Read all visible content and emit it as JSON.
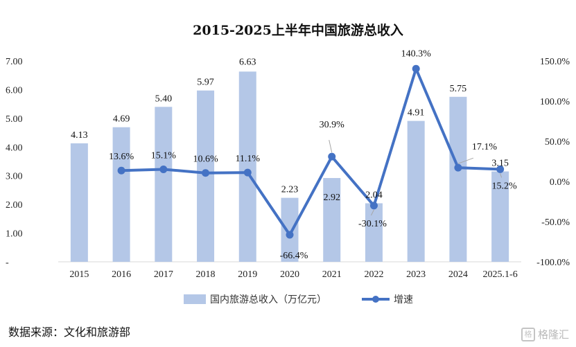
{
  "chart_data": {
    "type": "bar",
    "title": "2015-2025上半年中国旅游总收入",
    "categories": [
      "2015",
      "2016",
      "2017",
      "2018",
      "2019",
      "2020",
      "2021",
      "2022",
      "2023",
      "2024",
      "2025.1-6"
    ],
    "series": [
      {
        "name": "国内旅游总收入（万亿元）",
        "type": "bar",
        "axis": "left",
        "values": [
          4.13,
          4.69,
          5.4,
          5.97,
          6.63,
          2.23,
          2.92,
          2.04,
          4.91,
          5.75,
          3.15
        ],
        "labels": [
          "4.13",
          "4.69",
          "5.40",
          "5.97",
          "6.63",
          "2.23",
          "2.92",
          "2.04",
          "4.91",
          "5.75",
          "3.15"
        ],
        "color": "#b4c7e7"
      },
      {
        "name": "增速",
        "type": "line",
        "axis": "right",
        "values": [
          null,
          13.6,
          15.1,
          10.6,
          11.1,
          -66.4,
          30.9,
          -30.1,
          140.3,
          17.1,
          15.2
        ],
        "labels": [
          "",
          "13.6%",
          "15.1%",
          "10.6%",
          "11.1%",
          "-66.4%",
          "30.9%",
          "-30.1%",
          "140.3%",
          "17.1%",
          "15.2%"
        ],
        "color": "#4472c4"
      }
    ],
    "y_left": {
      "ylim": [
        0,
        7
      ],
      "ticks": [
        "-",
        "1.00",
        "2.00",
        "3.00",
        "4.00",
        "5.00",
        "6.00",
        "7.00"
      ]
    },
    "y_right": {
      "ylim": [
        -100,
        150
      ],
      "ticks": [
        "-100.0%",
        "-50.0%",
        "0.0%",
        "50.0%",
        "100.0%",
        "150.0%"
      ]
    },
    "grid": false,
    "legend_position": "bottom"
  },
  "source_text": "数据来源：文化和旅游部",
  "watermark": {
    "icon": "格",
    "text": "格隆汇"
  }
}
